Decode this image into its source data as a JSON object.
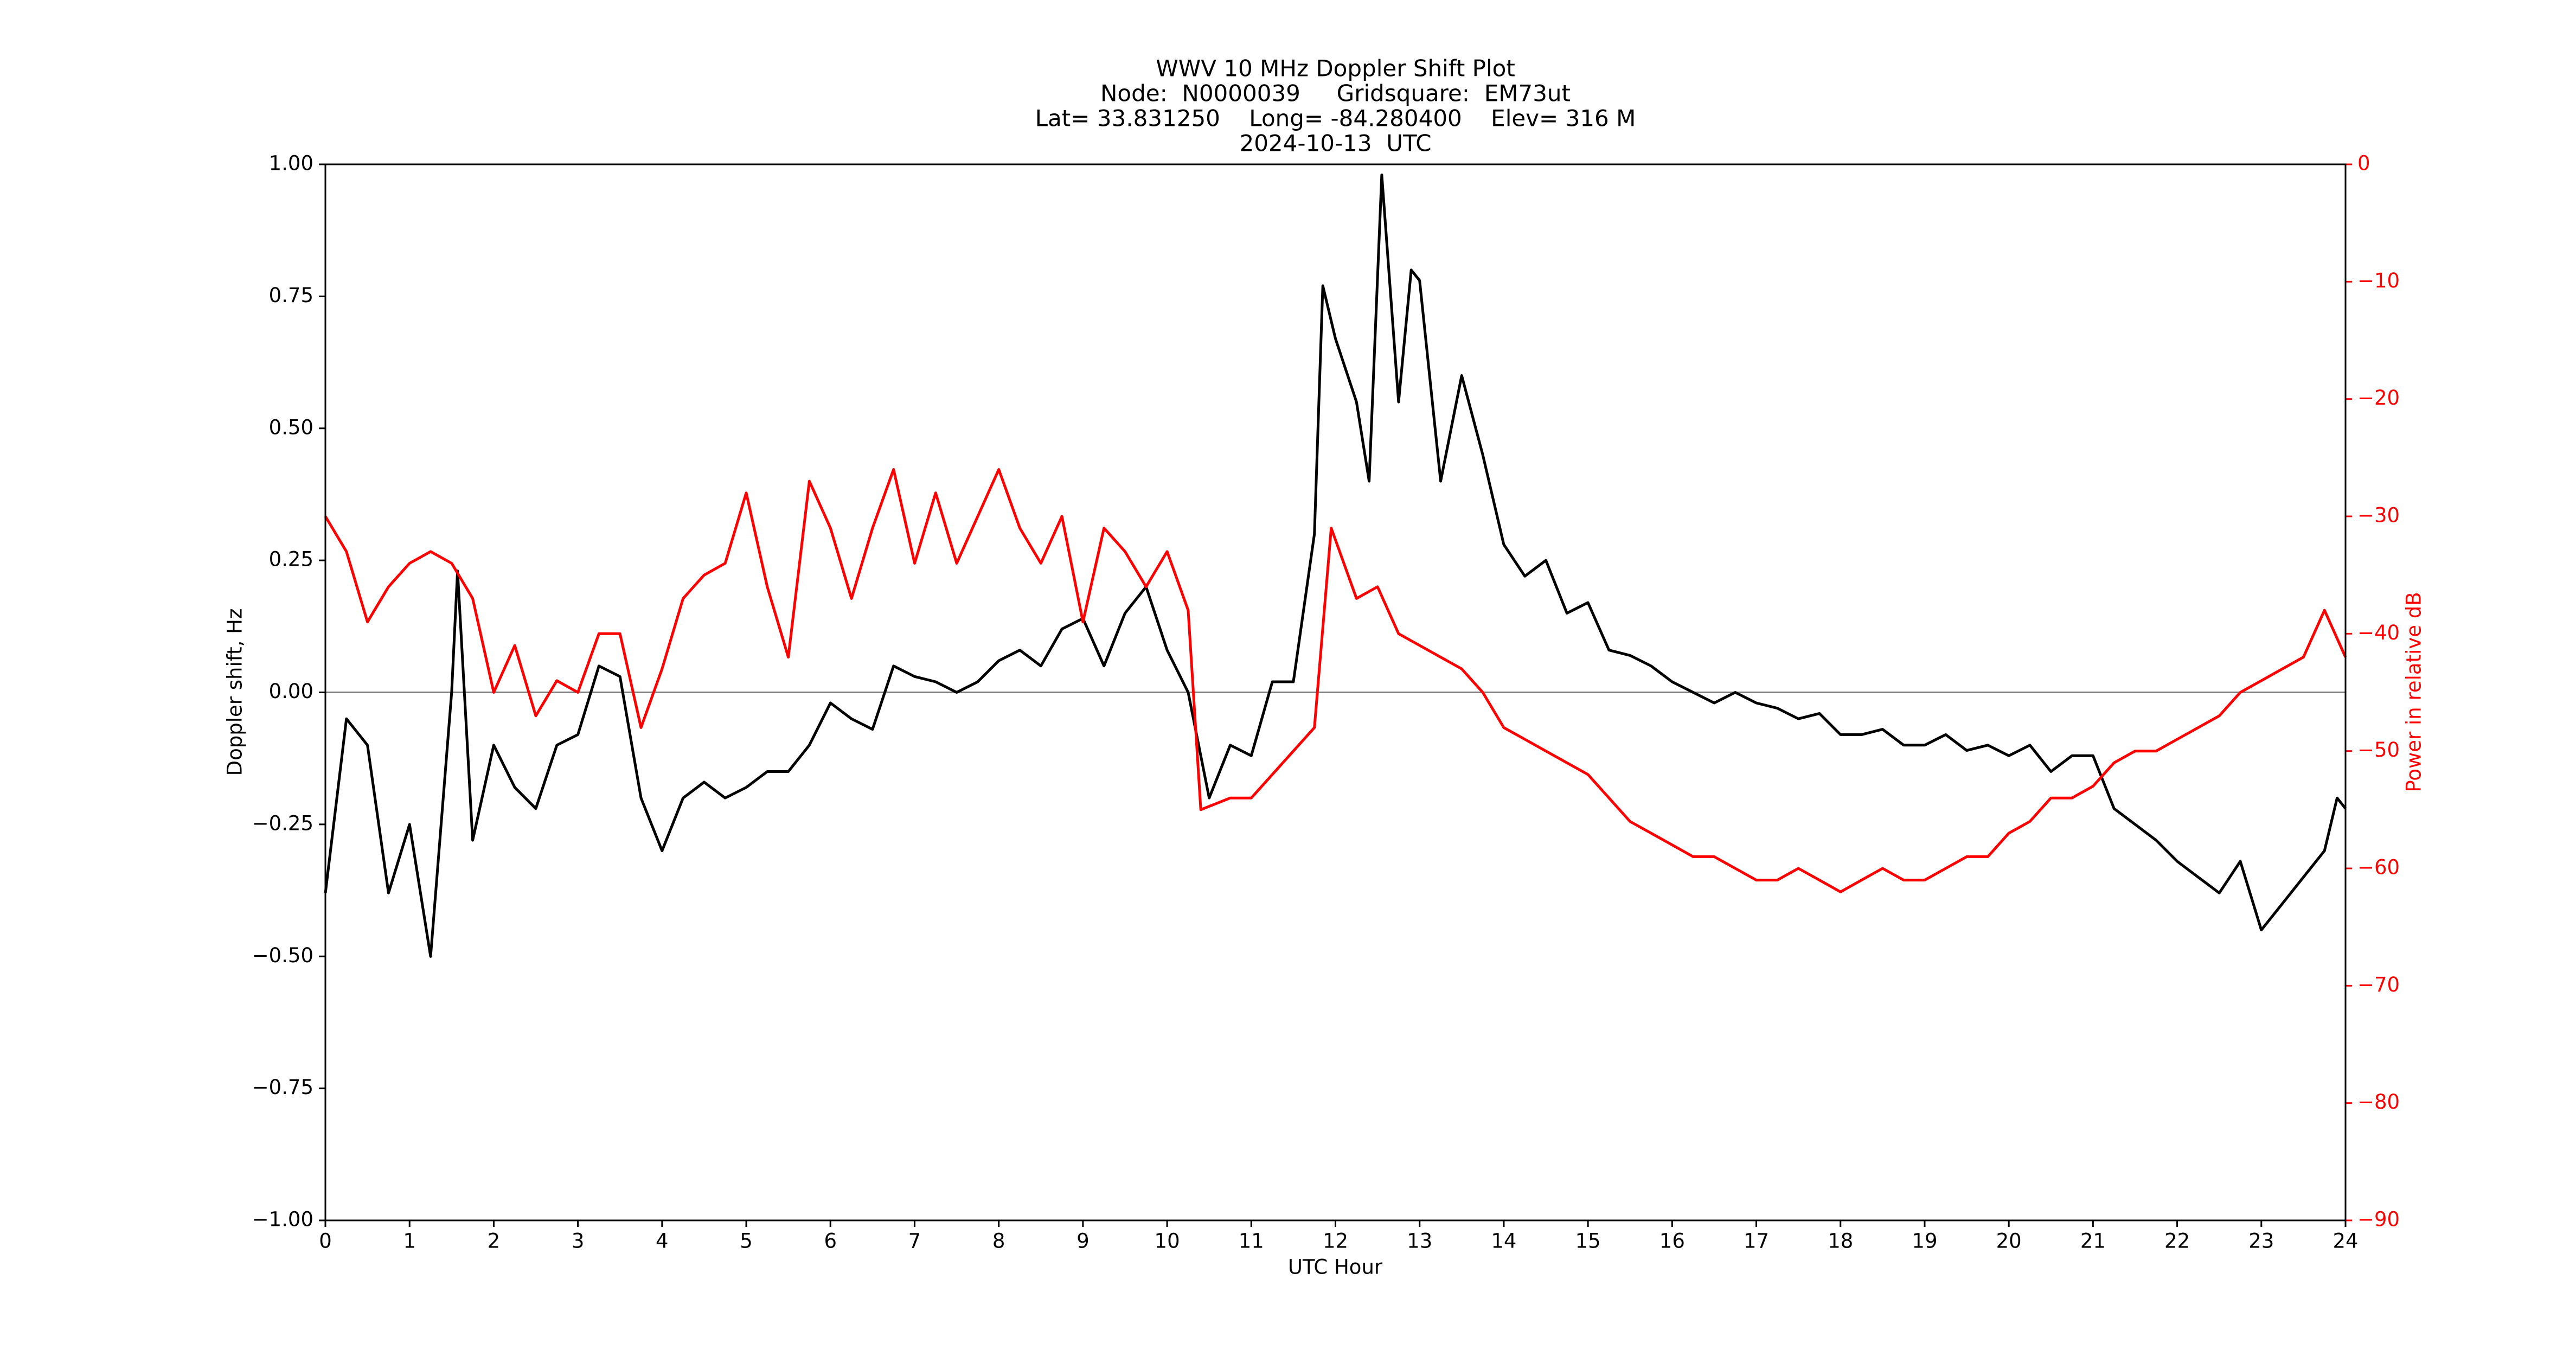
{
  "chart_data": {
    "type": "line",
    "title": [
      "WWV 10 MHz Doppler Shift Plot",
      "Node:  N0000039     Gridsquare:  EM73ut",
      "Lat= 33.831250    Long= -84.280400    Elev= 316 M",
      "2024-10-13  UTC"
    ],
    "xlabel": "UTC Hour",
    "ylabel": "Doppler shift, Hz",
    "y2label": "Power in relative dB",
    "xlim": [
      0,
      24
    ],
    "xticks": [
      0,
      1,
      2,
      3,
      4,
      5,
      6,
      7,
      8,
      9,
      10,
      11,
      12,
      13,
      14,
      15,
      16,
      17,
      18,
      19,
      20,
      21,
      22,
      23,
      24
    ],
    "ylim": [
      -1,
      1
    ],
    "yticks": [
      {
        "value": -1,
        "label": "−1.00"
      },
      {
        "value": -0.75,
        "label": "−0.75"
      },
      {
        "value": -0.5,
        "label": "−0.50"
      },
      {
        "value": -0.25,
        "label": "−0.25"
      },
      {
        "value": 0,
        "label": "0.00"
      },
      {
        "value": 0.25,
        "label": "0.25"
      },
      {
        "value": 0.5,
        "label": "0.50"
      },
      {
        "value": 0.75,
        "label": "0.75"
      },
      {
        "value": 1,
        "label": "1.00"
      }
    ],
    "y2lim": [
      -90,
      0
    ],
    "y2ticks": [
      {
        "value": -90,
        "label": "−90"
      },
      {
        "value": -80,
        "label": "−80"
      },
      {
        "value": -70,
        "label": "−70"
      },
      {
        "value": -60,
        "label": "−60"
      },
      {
        "value": -50,
        "label": "−50"
      },
      {
        "value": -40,
        "label": "−40"
      },
      {
        "value": -30,
        "label": "−30"
      },
      {
        "value": -20,
        "label": "−20"
      },
      {
        "value": -10,
        "label": "−10"
      },
      0
    ],
    "y2color": "#ff0000",
    "reference_line": 0,
    "series": [
      {
        "color": "#000000",
        "axis": "y",
        "x": [
          0,
          0.25,
          0.5,
          0.75,
          1,
          1.25,
          1.5,
          1.57,
          1.75,
          2,
          2.25,
          2.5,
          2.75,
          3,
          3.25,
          3.5,
          3.75,
          4,
          4.25,
          4.5,
          4.75,
          5,
          5.25,
          5.5,
          5.75,
          6,
          6.25,
          6.5,
          6.75,
          7,
          7.25,
          7.5,
          7.75,
          8,
          8.25,
          8.5,
          8.75,
          9,
          9.25,
          9.5,
          9.75,
          10,
          10.25,
          10.5,
          10.75,
          11,
          11.25,
          11.5,
          11.75,
          11.85,
          12,
          12.25,
          12.4,
          12.55,
          12.75,
          12.9,
          13,
          13.25,
          13.5,
          13.75,
          14,
          14.25,
          14.5,
          14.75,
          15,
          15.25,
          15.5,
          15.75,
          16,
          16.25,
          16.5,
          16.75,
          17,
          17.25,
          17.5,
          17.75,
          18,
          18.25,
          18.5,
          18.75,
          19,
          19.25,
          19.5,
          19.75,
          20,
          20.25,
          20.5,
          20.75,
          21,
          21.25,
          21.5,
          21.75,
          22,
          22.25,
          22.5,
          22.75,
          23,
          23.25,
          23.5,
          23.75,
          23.9,
          24
        ],
        "values": [
          -0.38,
          -0.05,
          -0.1,
          -0.38,
          -0.25,
          -0.5,
          0,
          0.23,
          -0.28,
          -0.1,
          -0.18,
          -0.22,
          -0.1,
          -0.08,
          0.05,
          0.03,
          -0.2,
          -0.3,
          -0.2,
          -0.17,
          -0.2,
          -0.18,
          -0.15,
          -0.15,
          -0.1,
          -0.02,
          -0.05,
          -0.07,
          0.05,
          0.03,
          0.02,
          0,
          0.02,
          0.06,
          0.08,
          0.05,
          0.12,
          0.14,
          0.05,
          0.15,
          0.2,
          0.08,
          0,
          -0.2,
          -0.1,
          -0.12,
          0.02,
          0.02,
          0.3,
          0.77,
          0.67,
          0.55,
          0.4,
          0.98,
          0.55,
          0.8,
          0.78,
          0.4,
          0.6,
          0.45,
          0.28,
          0.22,
          0.25,
          0.15,
          0.17,
          0.08,
          0.07,
          0.05,
          0.02,
          0,
          -0.02,
          0,
          -0.02,
          -0.03,
          -0.05,
          -0.04,
          -0.08,
          -0.08,
          -0.07,
          -0.1,
          -0.1,
          -0.08,
          -0.11,
          -0.1,
          -0.12,
          -0.1,
          -0.15,
          -0.12,
          -0.12,
          -0.22,
          -0.25,
          -0.28,
          -0.32,
          -0.35,
          -0.38,
          -0.32,
          -0.45,
          -0.4,
          -0.35,
          -0.3,
          -0.2,
          -0.22
        ]
      },
      {
        "color": "#ff0000",
        "axis": "y2",
        "x": [
          0,
          0.25,
          0.5,
          0.75,
          1,
          1.25,
          1.5,
          1.75,
          2,
          2.25,
          2.5,
          2.75,
          3,
          3.25,
          3.5,
          3.75,
          4,
          4.25,
          4.5,
          4.75,
          5,
          5.25,
          5.5,
          5.75,
          6,
          6.25,
          6.5,
          6.75,
          7,
          7.25,
          7.5,
          7.75,
          8,
          8.25,
          8.5,
          8.75,
          9,
          9.25,
          9.5,
          9.75,
          10,
          10.25,
          10.4,
          10.75,
          11,
          11.25,
          11.5,
          11.75,
          11.95,
          12.25,
          12.5,
          12.75,
          13,
          13.25,
          13.5,
          13.75,
          14,
          14.25,
          14.5,
          14.75,
          15,
          15.25,
          15.5,
          15.75,
          16,
          16.25,
          16.5,
          16.75,
          17,
          17.25,
          17.5,
          17.75,
          18,
          18.25,
          18.5,
          18.75,
          19,
          19.25,
          19.5,
          19.75,
          20,
          20.25,
          20.5,
          20.75,
          21,
          21.25,
          21.5,
          21.75,
          22,
          22.25,
          22.5,
          22.75,
          23,
          23.25,
          23.5,
          23.75,
          24
        ],
        "values": [
          -30,
          -33,
          -39,
          -36,
          -34,
          -33,
          -34,
          -37,
          -45,
          -41,
          -47,
          -44,
          -45,
          -40,
          -40,
          -48,
          -43,
          -37,
          -35,
          -34,
          -28,
          -36,
          -42,
          -27,
          -31,
          -37,
          -31,
          -26,
          -34,
          -28,
          -34,
          -30,
          -26,
          -31,
          -34,
          -30,
          -39,
          -31,
          -33,
          -36,
          -33,
          -38,
          -55,
          -54,
          -54,
          -52,
          -50,
          -48,
          -31,
          -37,
          -36,
          -40,
          -41,
          -42,
          -43,
          -45,
          -48,
          -49,
          -50,
          -51,
          -52,
          -54,
          -56,
          -57,
          -58,
          -59,
          -59,
          -60,
          -61,
          -61,
          -60,
          -61,
          -62,
          -61,
          -60,
          -61,
          -61,
          -60,
          -59,
          -59,
          -57,
          -56,
          -54,
          -54,
          -53,
          -51,
          -50,
          -50,
          -49,
          -48,
          -47,
          -45,
          -44,
          -43,
          -42,
          -38,
          -42
        ]
      }
    ]
  }
}
